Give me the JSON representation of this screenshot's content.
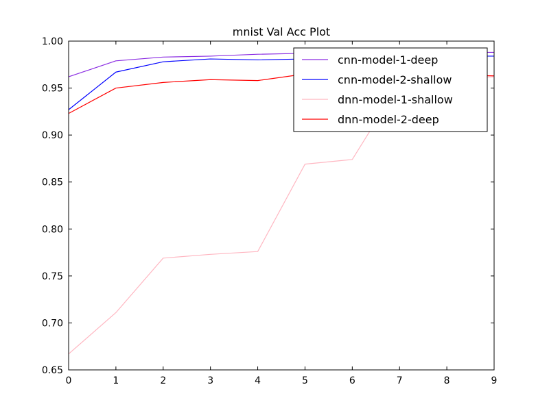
{
  "chart_data": {
    "type": "line",
    "title": "mnist Val Acc Plot",
    "xlabel": "",
    "ylabel": "",
    "x": [
      0,
      1,
      2,
      3,
      4,
      5,
      6,
      7,
      8,
      9
    ],
    "xlim": [
      0,
      9
    ],
    "ylim": [
      0.65,
      1.0
    ],
    "x_ticks": [
      "0",
      "1",
      "2",
      "3",
      "4",
      "5",
      "6",
      "7",
      "8",
      "9"
    ],
    "y_ticks": [
      "0.65",
      "0.70",
      "0.75",
      "0.80",
      "0.85",
      "0.90",
      "0.95",
      "1.00"
    ],
    "grid": false,
    "legend_position": "top-right",
    "series": [
      {
        "name": "cnn-model-1-deep",
        "color": "#8a2be2",
        "values": [
          0.962,
          0.979,
          0.983,
          0.984,
          0.986,
          0.987,
          0.987,
          0.988,
          0.988,
          0.988
        ]
      },
      {
        "name": "cnn-model-2-shallow",
        "color": "#0000ff",
        "values": [
          0.927,
          0.967,
          0.978,
          0.981,
          0.98,
          0.981,
          0.982,
          0.983,
          0.984,
          0.984
        ]
      },
      {
        "name": "dnn-model-1-shallow",
        "color": "#ffb6c1",
        "values": [
          0.667,
          0.711,
          0.769,
          0.773,
          0.776,
          0.869,
          0.874,
          0.955,
          0.96,
          0.962
        ]
      },
      {
        "name": "dnn-model-2-deep",
        "color": "#ff0000",
        "values": [
          0.923,
          0.95,
          0.956,
          0.959,
          0.958,
          0.965,
          0.966,
          0.964,
          0.964,
          0.963
        ]
      }
    ]
  }
}
